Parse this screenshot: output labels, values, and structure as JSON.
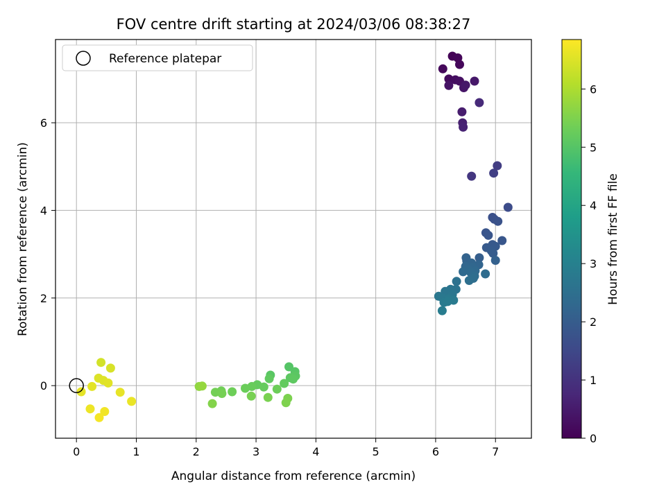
{
  "chart_data": {
    "type": "scatter",
    "title": "FOV centre drift starting at 2024/03/06 08:38:27",
    "xlabel": "Angular distance from reference (arcmin)",
    "ylabel": "Rotation from reference (arcmin)",
    "xlim": [
      -0.35,
      7.6
    ],
    "ylim": [
      -1.2,
      7.9
    ],
    "xticks": [
      0,
      1,
      2,
      3,
      4,
      5,
      6,
      7
    ],
    "yticks": [
      0,
      2,
      4,
      6
    ],
    "grid": true,
    "legend": {
      "position": "top-left",
      "entries": [
        "Reference platepar"
      ]
    },
    "reference_point": {
      "x": 0,
      "y": 0
    },
    "colorbar": {
      "label": "Hours from first FF file",
      "colormap": "viridis",
      "range": [
        0,
        6.85
      ],
      "ticks": [
        0,
        1,
        2,
        3,
        4,
        5,
        6
      ]
    },
    "colormap_stops": [
      "#440154",
      "#482878",
      "#3e4989",
      "#31688e",
      "#26828e",
      "#1f9e89",
      "#35b779",
      "#6ece58",
      "#b5de2b",
      "#fde725"
    ],
    "points": [
      {
        "x": 6.28,
        "y": 7.52,
        "c": 0.05
      },
      {
        "x": 6.37,
        "y": 7.48,
        "c": 0.1
      },
      {
        "x": 6.4,
        "y": 7.33,
        "c": 0.12
      },
      {
        "x": 6.12,
        "y": 7.23,
        "c": 0.15
      },
      {
        "x": 6.22,
        "y": 7.0,
        "c": 0.2
      },
      {
        "x": 6.33,
        "y": 6.98,
        "c": 0.25
      },
      {
        "x": 6.4,
        "y": 6.95,
        "c": 0.3
      },
      {
        "x": 6.22,
        "y": 6.85,
        "c": 0.35
      },
      {
        "x": 6.47,
        "y": 6.8,
        "c": 0.4
      },
      {
        "x": 6.5,
        "y": 6.86,
        "c": 0.42
      },
      {
        "x": 6.65,
        "y": 6.95,
        "c": 0.45
      },
      {
        "x": 6.73,
        "y": 6.46,
        "c": 0.8
      },
      {
        "x": 6.44,
        "y": 6.25,
        "c": 0.55
      },
      {
        "x": 6.45,
        "y": 6.0,
        "c": 0.6
      },
      {
        "x": 6.46,
        "y": 5.9,
        "c": 0.65
      },
      {
        "x": 7.03,
        "y": 5.02,
        "c": 1.25
      },
      {
        "x": 6.97,
        "y": 4.85,
        "c": 1.3
      },
      {
        "x": 6.6,
        "y": 4.78,
        "c": 1.1
      },
      {
        "x": 7.21,
        "y": 4.07,
        "c": 1.6
      },
      {
        "x": 6.95,
        "y": 3.84,
        "c": 1.7
      },
      {
        "x": 6.98,
        "y": 3.8,
        "c": 1.72
      },
      {
        "x": 7.04,
        "y": 3.75,
        "c": 1.75
      },
      {
        "x": 6.84,
        "y": 3.49,
        "c": 1.8
      },
      {
        "x": 6.88,
        "y": 3.43,
        "c": 1.82
      },
      {
        "x": 7.11,
        "y": 3.31,
        "c": 1.85
      },
      {
        "x": 6.95,
        "y": 3.22,
        "c": 1.9
      },
      {
        "x": 7.0,
        "y": 3.18,
        "c": 1.92
      },
      {
        "x": 6.85,
        "y": 3.15,
        "c": 1.95
      },
      {
        "x": 6.93,
        "y": 3.08,
        "c": 1.97
      },
      {
        "x": 6.96,
        "y": 3.02,
        "c": 2.0
      },
      {
        "x": 6.73,
        "y": 2.92,
        "c": 2.05
      },
      {
        "x": 7.0,
        "y": 2.86,
        "c": 2.1
      },
      {
        "x": 6.51,
        "y": 2.92,
        "c": 2.15
      },
      {
        "x": 6.52,
        "y": 2.85,
        "c": 2.17
      },
      {
        "x": 6.6,
        "y": 2.8,
        "c": 2.2
      },
      {
        "x": 6.72,
        "y": 2.76,
        "c": 2.22
      },
      {
        "x": 6.5,
        "y": 2.72,
        "c": 2.25
      },
      {
        "x": 6.62,
        "y": 2.7,
        "c": 2.27
      },
      {
        "x": 6.55,
        "y": 2.65,
        "c": 2.3
      },
      {
        "x": 6.66,
        "y": 2.62,
        "c": 2.32
      },
      {
        "x": 6.46,
        "y": 2.6,
        "c": 2.35
      },
      {
        "x": 6.59,
        "y": 2.58,
        "c": 2.37
      },
      {
        "x": 6.83,
        "y": 2.55,
        "c": 2.4
      },
      {
        "x": 6.65,
        "y": 2.5,
        "c": 2.42
      },
      {
        "x": 6.63,
        "y": 2.45,
        "c": 2.45
      },
      {
        "x": 6.56,
        "y": 2.4,
        "c": 2.5
      },
      {
        "x": 6.35,
        "y": 2.38,
        "c": 2.55
      },
      {
        "x": 6.34,
        "y": 2.2,
        "c": 2.6
      },
      {
        "x": 6.25,
        "y": 2.2,
        "c": 2.62
      },
      {
        "x": 6.16,
        "y": 2.15,
        "c": 2.65
      },
      {
        "x": 6.21,
        "y": 2.12,
        "c": 2.67
      },
      {
        "x": 6.28,
        "y": 2.08,
        "c": 2.7
      },
      {
        "x": 6.05,
        "y": 2.04,
        "c": 2.72
      },
      {
        "x": 6.12,
        "y": 2.0,
        "c": 2.75
      },
      {
        "x": 6.22,
        "y": 1.98,
        "c": 2.78
      },
      {
        "x": 6.3,
        "y": 1.95,
        "c": 2.8
      },
      {
        "x": 6.14,
        "y": 1.9,
        "c": 2.82
      },
      {
        "x": 6.2,
        "y": 1.92,
        "c": 2.85
      },
      {
        "x": 6.11,
        "y": 1.71,
        "c": 2.88
      },
      {
        "x": 3.55,
        "y": 0.43,
        "c": 5.0
      },
      {
        "x": 3.65,
        "y": 0.32,
        "c": 5.02
      },
      {
        "x": 3.24,
        "y": 0.24,
        "c": 5.05
      },
      {
        "x": 3.66,
        "y": 0.22,
        "c": 5.07
      },
      {
        "x": 3.57,
        "y": 0.18,
        "c": 5.1
      },
      {
        "x": 3.62,
        "y": 0.15,
        "c": 5.12
      },
      {
        "x": 3.22,
        "y": 0.16,
        "c": 5.15
      },
      {
        "x": 3.47,
        "y": 0.05,
        "c": 5.18
      },
      {
        "x": 3.02,
        "y": 0.02,
        "c": 5.2
      },
      {
        "x": 3.13,
        "y": -0.03,
        "c": 5.22
      },
      {
        "x": 2.93,
        "y": -0.02,
        "c": 5.25
      },
      {
        "x": 2.82,
        "y": -0.06,
        "c": 5.28
      },
      {
        "x": 3.35,
        "y": -0.08,
        "c": 5.3
      },
      {
        "x": 2.6,
        "y": -0.14,
        "c": 5.32
      },
      {
        "x": 2.42,
        "y": -0.12,
        "c": 5.35
      },
      {
        "x": 2.32,
        "y": -0.15,
        "c": 5.38
      },
      {
        "x": 2.43,
        "y": -0.18,
        "c": 5.4
      },
      {
        "x": 2.92,
        "y": -0.24,
        "c": 5.42
      },
      {
        "x": 3.2,
        "y": -0.27,
        "c": 5.45
      },
      {
        "x": 3.53,
        "y": -0.29,
        "c": 5.48
      },
      {
        "x": 3.5,
        "y": -0.39,
        "c": 5.5
      },
      {
        "x": 2.27,
        "y": -0.41,
        "c": 5.55
      },
      {
        "x": 2.05,
        "y": -0.02,
        "c": 5.7
      },
      {
        "x": 2.1,
        "y": -0.01,
        "c": 5.75
      },
      {
        "x": 0.41,
        "y": 0.53,
        "c": 6.4
      },
      {
        "x": 0.57,
        "y": 0.4,
        "c": 6.45
      },
      {
        "x": 0.37,
        "y": 0.17,
        "c": 6.5
      },
      {
        "x": 0.45,
        "y": 0.12,
        "c": 6.52
      },
      {
        "x": 0.53,
        "y": 0.06,
        "c": 6.55
      },
      {
        "x": 0.26,
        "y": -0.02,
        "c": 6.58
      },
      {
        "x": 0.08,
        "y": -0.14,
        "c": 6.6
      },
      {
        "x": 0.73,
        "y": -0.15,
        "c": 6.62
      },
      {
        "x": 0.92,
        "y": -0.36,
        "c": 6.65
      },
      {
        "x": 0.23,
        "y": -0.53,
        "c": 6.68
      },
      {
        "x": 0.47,
        "y": -0.59,
        "c": 6.72
      },
      {
        "x": 0.38,
        "y": -0.73,
        "c": 6.75
      }
    ]
  }
}
